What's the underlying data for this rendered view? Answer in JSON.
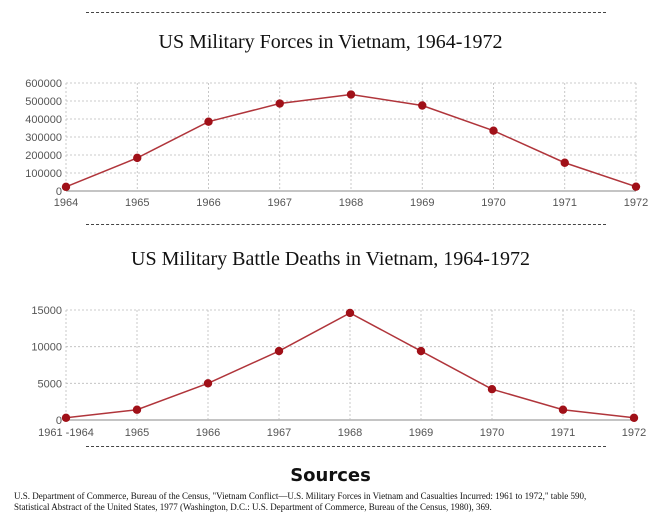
{
  "charts": [
    {
      "title": "US Military Forces in Vietnam, 1964-1972"
    },
    {
      "title": "US Military Battle Deaths in Vietnam, 1964-1972"
    }
  ],
  "sources": {
    "heading": "Sources",
    "text": "U.S. Department of Commerce, Bureau of the Census, \"Vietnam Conflict—U.S. Military Forces in Vietnam and Casualties Incurred: 1961 to 1972,\" table 590, Statistical Abstract of the United States, 1977 (Washington, D.C.: U.S. Department of Commerce, Bureau of the Census, 1980), 369."
  },
  "chart_data": [
    {
      "type": "line",
      "title": "US Military Forces in Vietnam, 1964-1972",
      "x": [
        "1964",
        "1965",
        "1966",
        "1967",
        "1968",
        "1969",
        "1970",
        "1971",
        "1972"
      ],
      "series": [
        {
          "values": [
            23000,
            184000,
            385000,
            486000,
            536000,
            475000,
            335000,
            157000,
            24000
          ]
        }
      ],
      "yticks": [
        "0",
        "100000",
        "200000",
        "300000",
        "400000",
        "500000",
        "600000"
      ],
      "xticks": [
        "1964",
        "1965",
        "1966",
        "1967",
        "1968",
        "1969",
        "1970",
        "1971",
        "1972"
      ],
      "ylim": [
        0,
        600000
      ],
      "grid": true,
      "color": "#b0353b"
    },
    {
      "type": "line",
      "title": "US Military Battle Deaths in Vietnam, 1964-1972",
      "x": [
        "1961 -1964",
        "1965",
        "1966",
        "1967",
        "1968",
        "1969",
        "1970",
        "1971",
        "1972"
      ],
      "series": [
        {
          "values": [
            300,
            1400,
            5000,
            9400,
            14600,
            9400,
            4200,
            1400,
            300
          ]
        }
      ],
      "yticks": [
        "0",
        "5000",
        "10000",
        "15000"
      ],
      "xticks": [
        "1961 -1964",
        "1965",
        "1966",
        "1967",
        "1968",
        "1969",
        "1970",
        "1971",
        "1972"
      ],
      "ylim": [
        0,
        15000
      ],
      "grid": true,
      "color": "#b0353b"
    }
  ]
}
